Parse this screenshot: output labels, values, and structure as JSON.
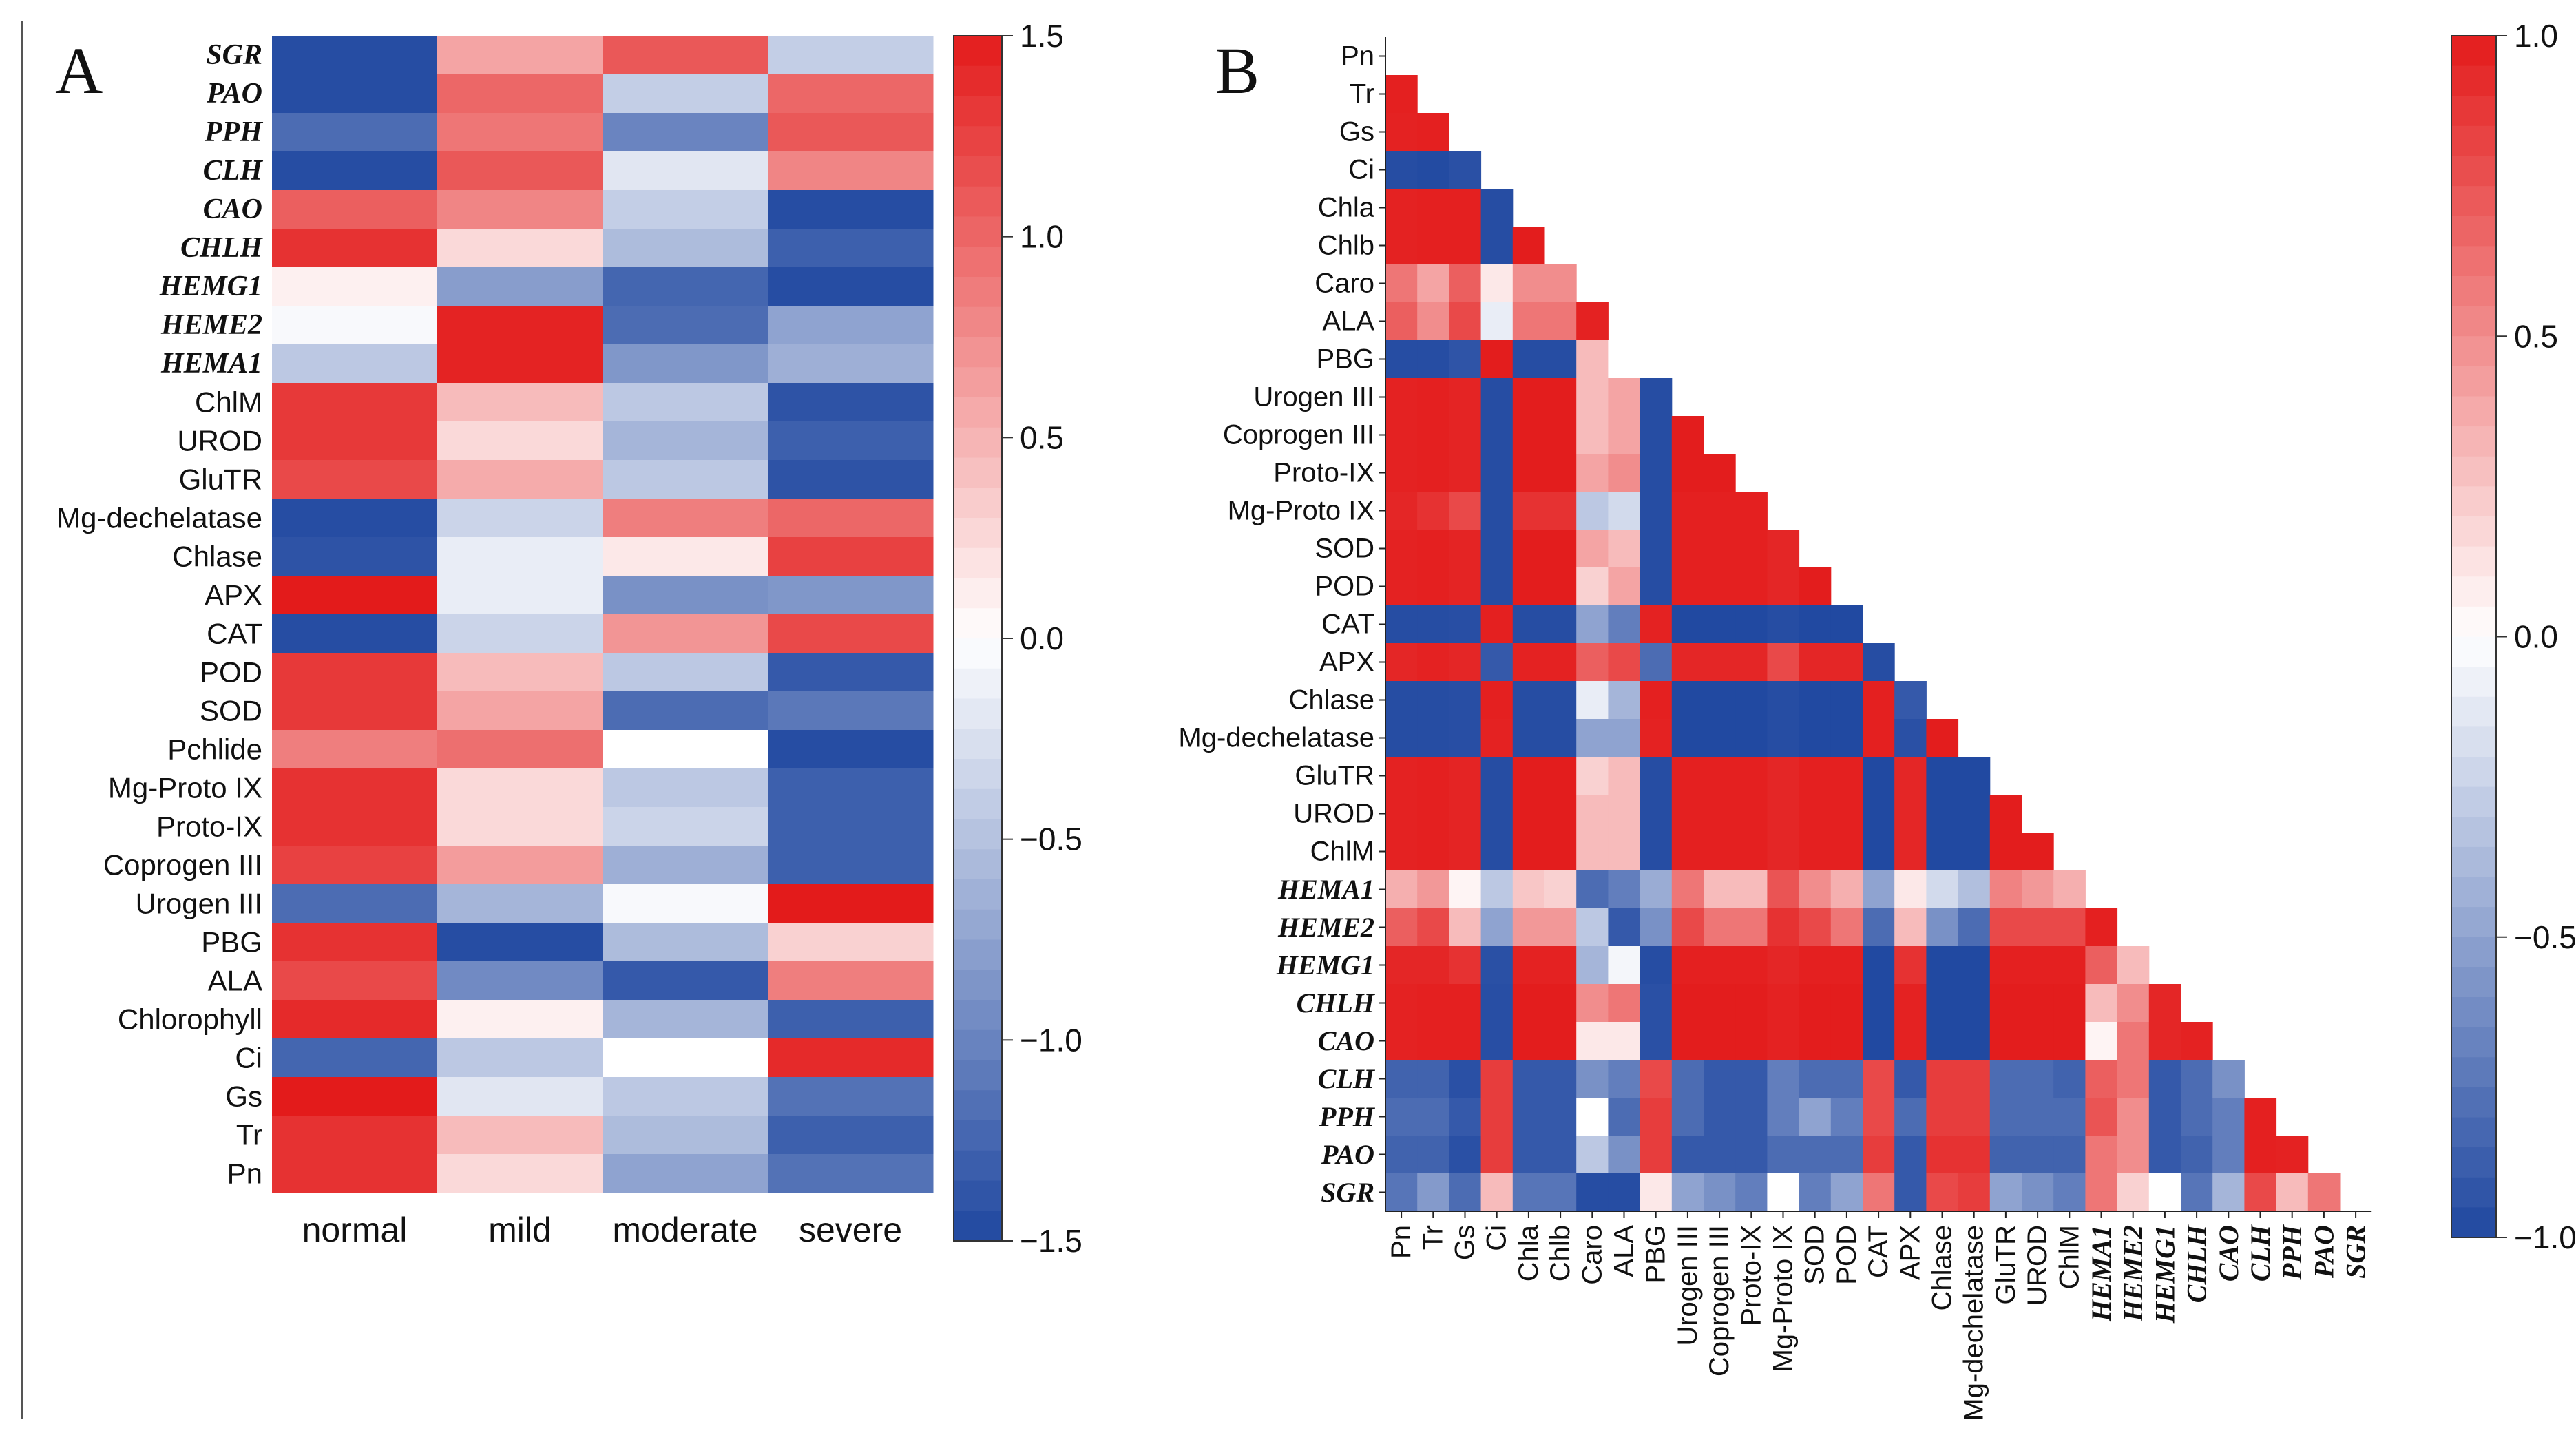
{
  "figure": {
    "panel_a_letter": "A",
    "panel_b_letter": "B",
    "colors": {
      "low": "#1f47a0",
      "mid": "#ffffff",
      "high": "#e31b1b"
    }
  },
  "chart_data": [
    {
      "type": "heatmap",
      "panel": "A",
      "title": "",
      "columns": [
        "normal",
        "mild",
        "moderate",
        "severe"
      ],
      "rows": [
        {
          "label": "SGR",
          "italic": true
        },
        {
          "label": "PAO",
          "italic": true
        },
        {
          "label": "PPH",
          "italic": true
        },
        {
          "label": "CLH",
          "italic": true
        },
        {
          "label": "CAO",
          "italic": true
        },
        {
          "label": "CHLH",
          "italic": true
        },
        {
          "label": "HEMG1",
          "italic": true
        },
        {
          "label": "HEME2",
          "italic": true
        },
        {
          "label": "HEMA1",
          "italic": true
        },
        {
          "label": "ChlM",
          "italic": false
        },
        {
          "label": "UROD",
          "italic": false
        },
        {
          "label": "GluTR",
          "italic": false
        },
        {
          "label": "Mg-dechelatase",
          "italic": false
        },
        {
          "label": "Chlase",
          "italic": false
        },
        {
          "label": "APX",
          "italic": false
        },
        {
          "label": "CAT",
          "italic": false
        },
        {
          "label": "POD",
          "italic": false
        },
        {
          "label": "SOD",
          "italic": false
        },
        {
          "label": "Pchlide",
          "italic": false
        },
        {
          "label": "Mg-Proto IX",
          "italic": false
        },
        {
          "label": "Proto-IX",
          "italic": false
        },
        {
          "label": "Coprogen III",
          "italic": false
        },
        {
          "label": "Urogen III",
          "italic": false
        },
        {
          "label": "PBG",
          "italic": false
        },
        {
          "label": "ALA",
          "italic": false
        },
        {
          "label": "Chlorophyll",
          "italic": false
        },
        {
          "label": "Ci",
          "italic": false
        },
        {
          "label": "Gs",
          "italic": false
        },
        {
          "label": "Tr",
          "italic": false
        },
        {
          "label": "Pn",
          "italic": false
        }
      ],
      "values": [
        [
          -1.45,
          0.6,
          1.1,
          -0.4
        ],
        [
          -1.45,
          1.0,
          -0.4,
          1.0
        ],
        [
          -1.2,
          0.9,
          -1.0,
          1.1
        ],
        [
          -1.45,
          1.1,
          -0.2,
          0.8
        ],
        [
          1.05,
          0.8,
          -0.4,
          -1.45
        ],
        [
          1.35,
          0.25,
          -0.55,
          -1.3
        ],
        [
          0.1,
          -0.8,
          -1.25,
          -1.45
        ],
        [
          -0.05,
          1.45,
          -1.2,
          -0.75
        ],
        [
          -0.45,
          1.45,
          -0.85,
          -0.65
        ],
        [
          1.3,
          0.45,
          -0.45,
          -1.4
        ],
        [
          1.3,
          0.25,
          -0.6,
          -1.3
        ],
        [
          1.2,
          0.55,
          -0.45,
          -1.4
        ],
        [
          -1.45,
          -0.35,
          0.85,
          1.0
        ],
        [
          -1.4,
          -0.15,
          0.15,
          1.25
        ],
        [
          1.5,
          -0.15,
          -0.9,
          -0.85
        ],
        [
          -1.45,
          -0.35,
          0.7,
          1.2
        ],
        [
          1.3,
          0.45,
          -0.45,
          -1.35
        ],
        [
          1.3,
          0.6,
          -1.2,
          -1.1
        ],
        [
          0.85,
          0.95,
          0.0,
          -1.45
        ],
        [
          1.35,
          0.25,
          -0.45,
          -1.3
        ],
        [
          1.35,
          0.25,
          -0.35,
          -1.3
        ],
        [
          1.25,
          0.65,
          -0.65,
          -1.3
        ],
        [
          -1.2,
          -0.6,
          -0.05,
          1.5
        ],
        [
          1.35,
          -1.45,
          -0.55,
          0.3
        ],
        [
          1.2,
          -0.95,
          -1.35,
          0.85
        ],
        [
          1.4,
          0.1,
          -0.6,
          -1.3
        ],
        [
          -1.25,
          -0.45,
          0.0,
          1.4
        ],
        [
          1.5,
          -0.2,
          -0.45,
          -1.15
        ],
        [
          1.35,
          0.45,
          -0.55,
          -1.3
        ],
        [
          1.35,
          0.25,
          -0.75,
          -1.15
        ]
      ],
      "colorbar": {
        "min": -1.5,
        "max": 1.5,
        "ticks": [
          "1.5",
          "1.0",
          "0.5",
          "0.0",
          "−0.5",
          "−1.0",
          "−1.5"
        ],
        "tick_values": [
          1.5,
          1.0,
          0.5,
          0.0,
          -0.5,
          -1.0,
          -1.5
        ]
      }
    },
    {
      "type": "heatmap",
      "panel": "B",
      "title": "",
      "labels": [
        {
          "label": "Pn",
          "italic": false
        },
        {
          "label": "Tr",
          "italic": false
        },
        {
          "label": "Gs",
          "italic": false
        },
        {
          "label": "Ci",
          "italic": false
        },
        {
          "label": "Chla",
          "italic": false
        },
        {
          "label": "Chlb",
          "italic": false
        },
        {
          "label": "Caro",
          "italic": false
        },
        {
          "label": "ALA",
          "italic": false
        },
        {
          "label": "PBG",
          "italic": false
        },
        {
          "label": "Urogen III",
          "italic": false
        },
        {
          "label": "Coprogen III",
          "italic": false
        },
        {
          "label": "Proto-IX",
          "italic": false
        },
        {
          "label": "Mg-Proto IX",
          "italic": false
        },
        {
          "label": "SOD",
          "italic": false
        },
        {
          "label": "POD",
          "italic": false
        },
        {
          "label": "CAT",
          "italic": false
        },
        {
          "label": "APX",
          "italic": false
        },
        {
          "label": "Chlase",
          "italic": false
        },
        {
          "label": "Mg-dechelatase",
          "italic": false
        },
        {
          "label": "GluTR",
          "italic": false
        },
        {
          "label": "UROD",
          "italic": false
        },
        {
          "label": "ChlM",
          "italic": false
        },
        {
          "label": "HEMA1",
          "italic": true
        },
        {
          "label": "HEME2",
          "italic": true
        },
        {
          "label": "HEMG1",
          "italic": true
        },
        {
          "label": "CHLH",
          "italic": true
        },
        {
          "label": "CAO",
          "italic": true
        },
        {
          "label": "CLH",
          "italic": true
        },
        {
          "label": "PPH",
          "italic": true
        },
        {
          "label": "PAO",
          "italic": true
        },
        {
          "label": "SGR",
          "italic": true
        }
      ],
      "lower_triangle": [
        [],
        [
          0.98
        ],
        [
          0.97,
          0.98
        ],
        [
          -0.97,
          -0.98,
          -0.95
        ],
        [
          0.97,
          0.98,
          0.98,
          -0.97
        ],
        [
          0.97,
          0.98,
          0.98,
          -0.97,
          0.99
        ],
        [
          0.6,
          0.4,
          0.7,
          0.1,
          0.5,
          0.5
        ],
        [
          0.7,
          0.5,
          0.8,
          -0.1,
          0.6,
          0.6,
          0.97
        ],
        [
          -0.97,
          -0.97,
          -0.93,
          0.99,
          -0.97,
          -0.97,
          0.3,
          0.0
        ],
        [
          0.97,
          0.98,
          0.96,
          -0.97,
          0.99,
          0.99,
          0.3,
          0.4,
          -0.97
        ],
        [
          0.97,
          0.98,
          0.96,
          -0.97,
          0.99,
          0.99,
          0.3,
          0.4,
          -0.97,
          0.99
        ],
        [
          0.97,
          0.98,
          0.96,
          -0.97,
          0.99,
          0.99,
          0.4,
          0.5,
          -0.97,
          0.99,
          0.99
        ],
        [
          0.95,
          0.9,
          0.8,
          -0.97,
          0.9,
          0.9,
          -0.3,
          -0.2,
          -0.97,
          0.98,
          0.98,
          0.98
        ],
        [
          0.97,
          0.98,
          0.96,
          -0.97,
          0.99,
          0.99,
          0.4,
          0.3,
          -0.97,
          0.98,
          0.98,
          0.98,
          0.95
        ],
        [
          0.97,
          0.98,
          0.96,
          -0.97,
          0.99,
          0.99,
          0.2,
          0.4,
          -0.97,
          0.98,
          0.98,
          0.98,
          0.95,
          0.99
        ],
        [
          -0.97,
          -0.97,
          -0.96,
          0.98,
          -0.97,
          -0.97,
          -0.5,
          -0.7,
          0.97,
          -0.99,
          -0.99,
          -0.99,
          -0.97,
          -0.99,
          -0.99
        ],
        [
          0.95,
          0.97,
          0.95,
          -0.9,
          0.97,
          0.97,
          0.7,
          0.8,
          -0.8,
          0.95,
          0.95,
          0.95,
          0.8,
          0.95,
          0.95,
          -0.97
        ],
        [
          -0.97,
          -0.97,
          -0.96,
          0.98,
          -0.97,
          -0.97,
          -0.1,
          -0.4,
          0.98,
          -0.99,
          -0.99,
          -0.99,
          -0.97,
          -0.99,
          -0.99,
          0.98,
          -0.9
        ],
        [
          -0.97,
          -0.97,
          -0.96,
          0.97,
          -0.97,
          -0.97,
          -0.5,
          -0.5,
          0.97,
          -0.99,
          -0.99,
          -0.99,
          -0.97,
          -0.99,
          -0.99,
          0.98,
          -0.95,
          0.99
        ],
        [
          0.97,
          0.98,
          0.96,
          -0.97,
          0.99,
          0.99,
          0.2,
          0.3,
          -0.97,
          0.98,
          0.98,
          0.98,
          0.95,
          0.98,
          0.98,
          -0.99,
          0.95,
          -0.99,
          -0.99
        ],
        [
          0.97,
          0.98,
          0.96,
          -0.97,
          0.99,
          0.99,
          0.3,
          0.3,
          -0.97,
          0.98,
          0.98,
          0.98,
          0.95,
          0.98,
          0.98,
          -0.99,
          0.95,
          -0.99,
          -0.99,
          0.99
        ],
        [
          0.97,
          0.98,
          0.96,
          -0.97,
          0.99,
          0.99,
          0.3,
          0.3,
          -0.97,
          0.98,
          0.98,
          0.98,
          0.95,
          0.98,
          0.98,
          -0.99,
          0.95,
          -0.99,
          -0.99,
          0.99,
          0.99
        ],
        [
          0.35,
          0.45,
          0.05,
          -0.3,
          0.25,
          0.2,
          -0.8,
          -0.7,
          -0.45,
          0.6,
          0.3,
          0.3,
          0.75,
          0.5,
          0.35,
          -0.5,
          0.1,
          -0.2,
          -0.35,
          0.55,
          0.45,
          0.35
        ],
        [
          0.7,
          0.8,
          0.3,
          -0.5,
          0.45,
          0.45,
          -0.3,
          -0.9,
          -0.6,
          0.8,
          0.6,
          0.6,
          0.9,
          0.8,
          0.6,
          -0.8,
          0.3,
          -0.6,
          -0.8,
          0.8,
          0.8,
          0.8,
          0.98
        ],
        [
          0.95,
          0.95,
          0.9,
          -0.95,
          0.97,
          0.97,
          -0.4,
          -0.05,
          -0.97,
          0.98,
          0.98,
          0.98,
          0.95,
          0.98,
          0.98,
          -0.99,
          0.9,
          -0.99,
          -0.99,
          0.98,
          0.98,
          0.98,
          0.7,
          0.3
        ],
        [
          0.97,
          0.98,
          0.98,
          -0.96,
          0.99,
          0.99,
          0.5,
          0.6,
          -0.95,
          0.99,
          0.99,
          0.99,
          0.97,
          0.99,
          0.99,
          -0.99,
          0.97,
          -0.99,
          -0.99,
          0.99,
          0.99,
          0.99,
          0.3,
          0.5,
          0.95
        ],
        [
          0.97,
          0.98,
          0.98,
          -0.96,
          0.99,
          0.99,
          0.1,
          0.1,
          -0.95,
          0.99,
          0.99,
          0.99,
          0.97,
          0.99,
          0.99,
          -0.99,
          0.97,
          -0.99,
          -0.99,
          0.99,
          0.99,
          0.99,
          0.05,
          0.6,
          0.95,
          0.97
        ],
        [
          -0.85,
          -0.85,
          -0.95,
          0.85,
          -0.9,
          -0.9,
          -0.6,
          -0.7,
          0.8,
          -0.8,
          -0.9,
          -0.9,
          -0.7,
          -0.8,
          -0.8,
          0.8,
          -0.9,
          0.85,
          0.85,
          -0.8,
          -0.8,
          -0.85,
          0.7,
          0.6,
          -0.9,
          -0.8,
          -0.6
        ],
        [
          -0.8,
          -0.8,
          -0.9,
          0.85,
          -0.9,
          -0.9,
          0.0,
          -0.8,
          0.85,
          -0.8,
          -0.9,
          -0.9,
          -0.7,
          -0.5,
          -0.7,
          0.8,
          -0.8,
          0.85,
          0.85,
          -0.8,
          -0.8,
          -0.8,
          0.75,
          0.5,
          -0.9,
          -0.8,
          -0.7,
          0.98
        ],
        [
          -0.85,
          -0.85,
          -0.95,
          0.85,
          -0.9,
          -0.9,
          -0.3,
          -0.6,
          0.85,
          -0.9,
          -0.9,
          -0.9,
          -0.8,
          -0.8,
          -0.8,
          0.85,
          -0.9,
          0.9,
          0.9,
          -0.85,
          -0.85,
          -0.85,
          0.6,
          0.5,
          -0.9,
          -0.85,
          -0.7,
          0.98,
          0.97
        ],
        [
          -0.75,
          -0.55,
          -0.8,
          0.3,
          -0.75,
          -0.75,
          -0.97,
          -0.97,
          0.1,
          -0.5,
          -0.6,
          -0.7,
          0.0,
          -0.7,
          -0.5,
          0.6,
          -0.9,
          0.8,
          0.85,
          -0.5,
          -0.6,
          -0.7,
          0.6,
          0.2,
          0.0,
          -0.75,
          -0.4,
          0.8,
          0.3,
          0.6
        ]
      ],
      "colorbar": {
        "min": -1.0,
        "max": 1.0,
        "ticks": [
          "1.0",
          "0.5",
          "0.0",
          "−0.5",
          "−1.0"
        ],
        "tick_values": [
          1.0,
          0.5,
          0.0,
          -0.5,
          -1.0
        ]
      }
    }
  ]
}
